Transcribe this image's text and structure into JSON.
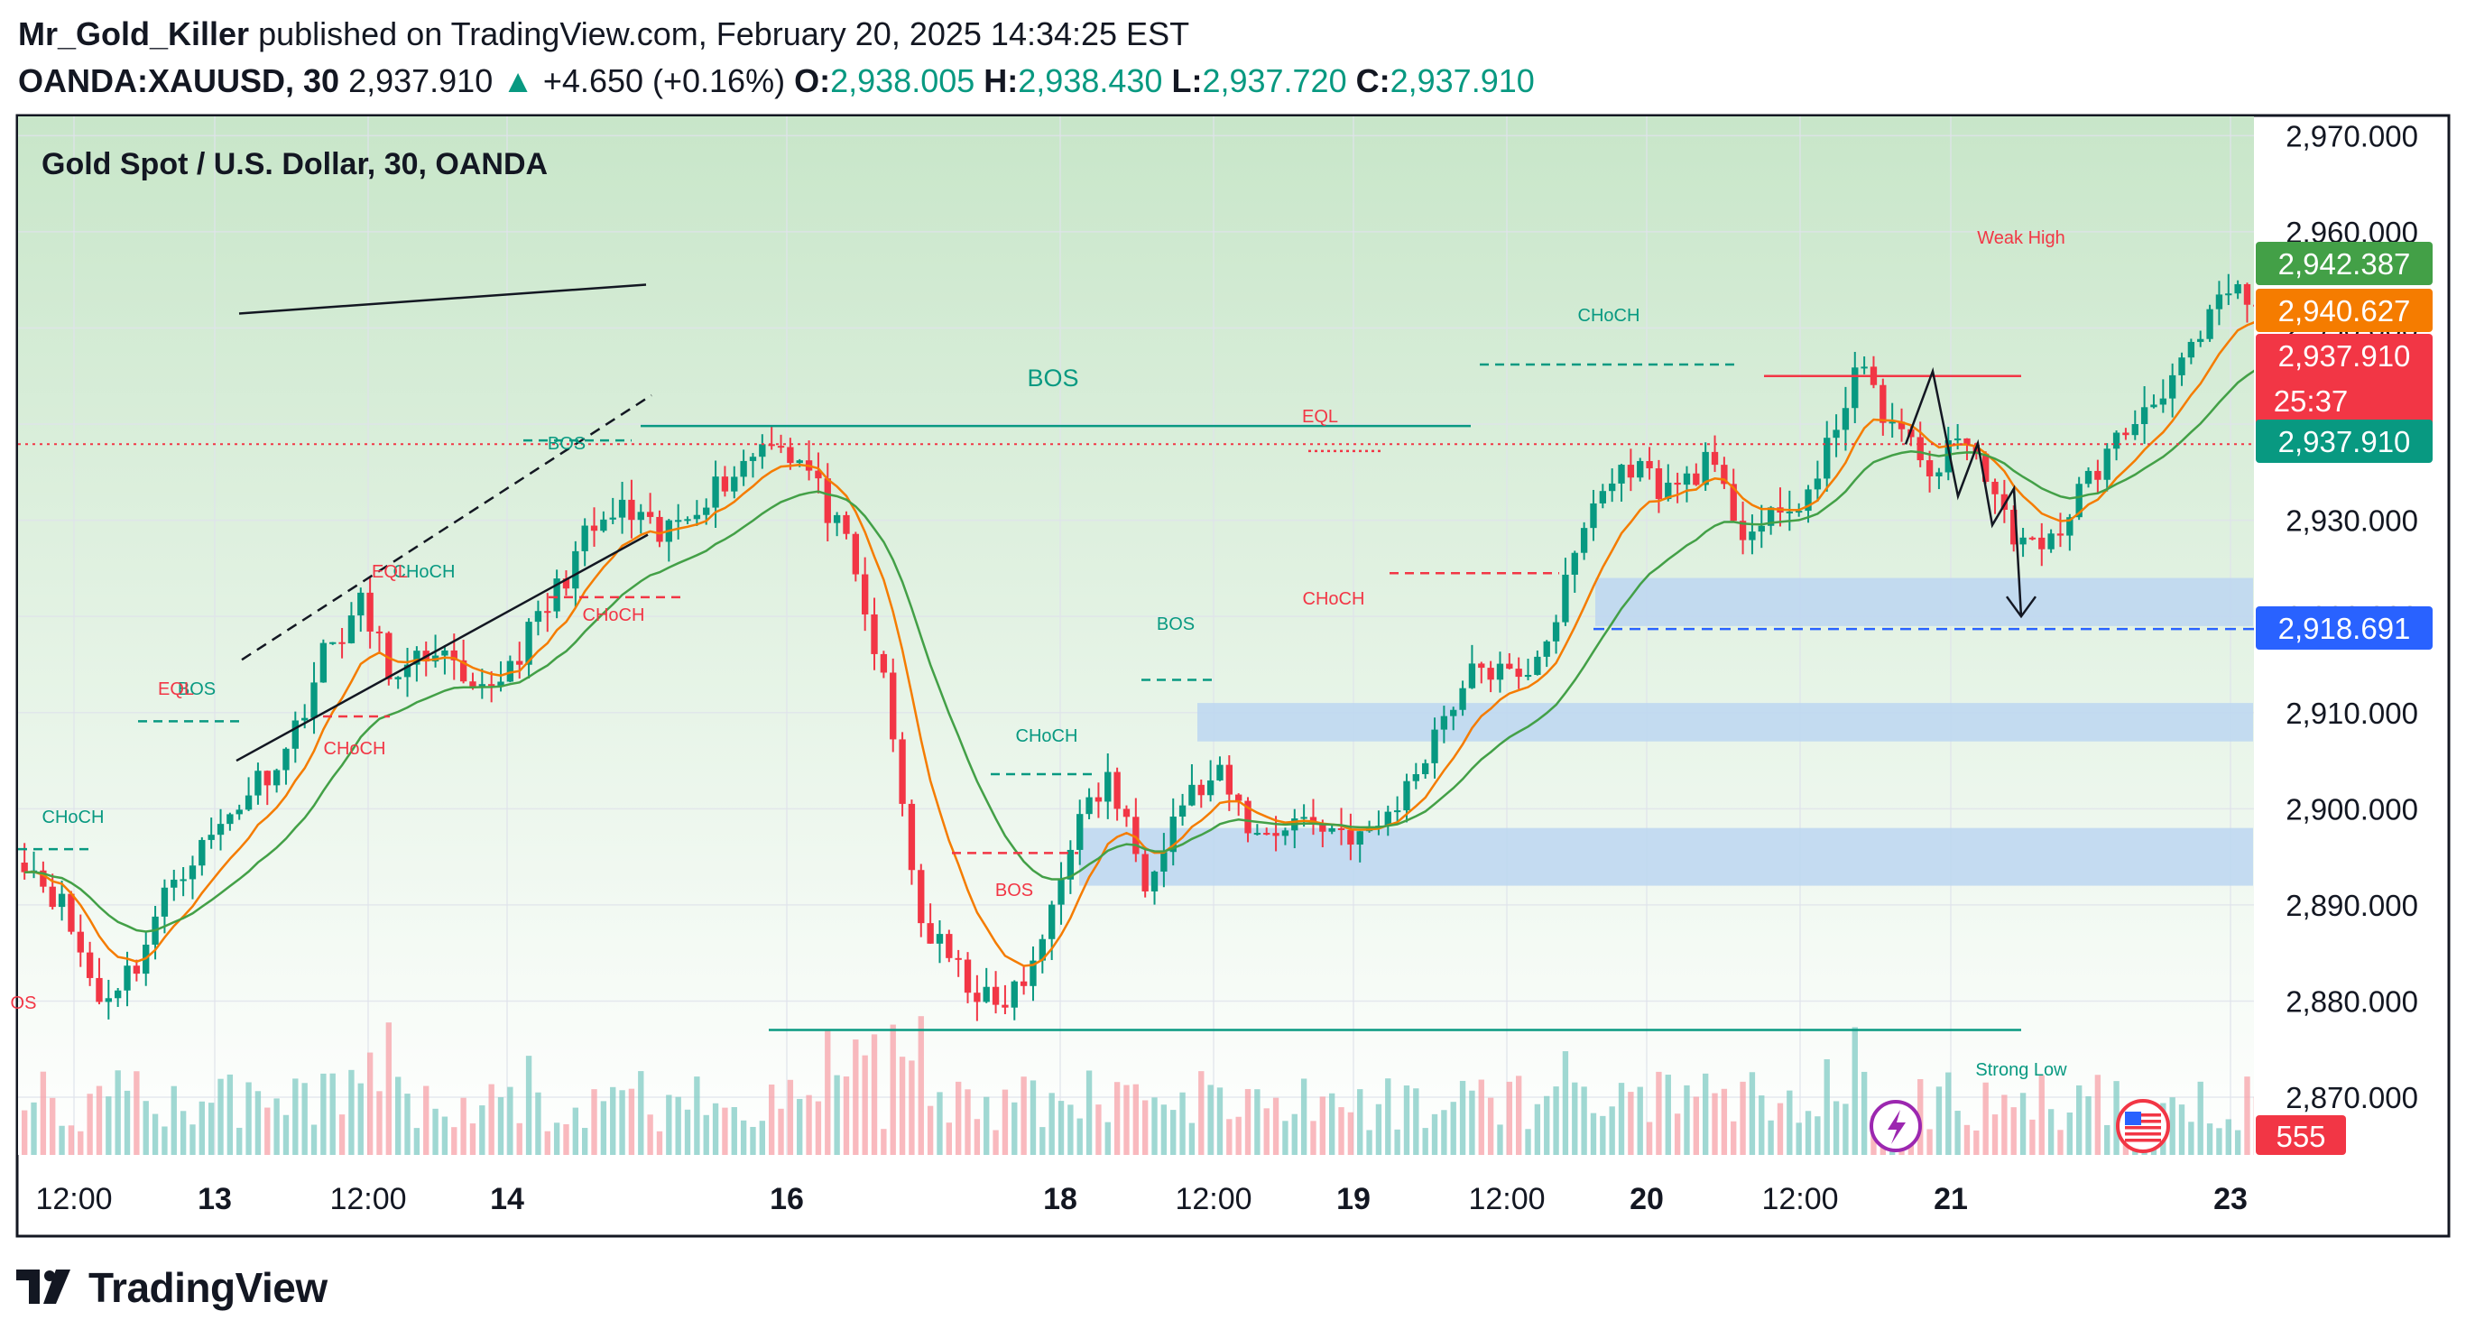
{
  "header": {
    "author": "Mr_Gold_Killer",
    "published_on": "published on TradingView.com, February 20, 2025 14:34:25 EST",
    "symbol": "OANDA:XAUUSD, 30",
    "last": "2,937.910",
    "arrow": "▲",
    "change": "+4.650 (+0.16%)",
    "o_label": "O:",
    "o_value": "2,938.005",
    "h_label": "H:",
    "h_value": "2,938.430",
    "l_label": "L:",
    "l_value": "2,937.720",
    "c_label": "C:",
    "c_value": "2,937.910"
  },
  "footer": {
    "brand": "TradingView"
  },
  "colors": {
    "up": "#089981",
    "down": "#f23645",
    "ema_fast": "#f57c00",
    "ema_slow": "#43a047",
    "zone": "#bcd6f1",
    "bg_top": "#c8e6c9"
  },
  "chart_data": {
    "type": "candlestick",
    "title": "Gold Spot / U.S. Dollar, 30, OANDA",
    "ylim": [
      2864,
      2972
    ],
    "y_ticks": [
      2870,
      2880,
      2890,
      2900,
      2910,
      2920,
      2930,
      2940,
      2950,
      2960,
      2970
    ],
    "y_tick_labels": [
      "2,870.000",
      "2,880.000",
      "2,890.000",
      "2,900.000",
      "2,910.000",
      "2,920.000",
      "2,930.000",
      "2,940.000",
      "2,950.000",
      "2,960.000",
      "2,970.000"
    ],
    "x_tick_labels": [
      "12:00",
      "13",
      "12:00",
      "14",
      "16",
      "18",
      "12:00",
      "19",
      "12:00",
      "20",
      "12:00",
      "21",
      "23"
    ],
    "series_path": [
      [
        0,
        2895
      ],
      [
        4,
        2890
      ],
      [
        8,
        2880
      ],
      [
        12,
        2884
      ],
      [
        16,
        2893
      ],
      [
        20,
        2897
      ],
      [
        24,
        2902
      ],
      [
        28,
        2906
      ],
      [
        32,
        2916
      ],
      [
        36,
        2921
      ],
      [
        40,
        2913
      ],
      [
        44,
        2917
      ],
      [
        48,
        2911
      ],
      [
        52,
        2915
      ],
      [
        56,
        2921
      ],
      [
        60,
        2928
      ],
      [
        64,
        2931
      ],
      [
        68,
        2928
      ],
      [
        72,
        2932
      ],
      [
        76,
        2935
      ],
      [
        80,
        2939
      ],
      [
        84,
        2935
      ],
      [
        88,
        2927
      ],
      [
        92,
        2913
      ],
      [
        96,
        2888
      ],
      [
        100,
        2883
      ],
      [
        104,
        2879
      ],
      [
        108,
        2883
      ],
      [
        112,
        2897
      ],
      [
        116,
        2903
      ],
      [
        120,
        2893
      ],
      [
        124,
        2901
      ],
      [
        128,
        2903
      ],
      [
        132,
        2897
      ],
      [
        136,
        2899
      ],
      [
        140,
        2898
      ],
      [
        144,
        2897
      ],
      [
        148,
        2902
      ],
      [
        152,
        2910
      ],
      [
        156,
        2915
      ],
      [
        160,
        2913
      ],
      [
        164,
        2920
      ],
      [
        168,
        2932
      ],
      [
        172,
        2936
      ],
      [
        176,
        2933
      ],
      [
        180,
        2936
      ],
      [
        184,
        2929
      ],
      [
        188,
        2930
      ],
      [
        192,
        2934
      ],
      [
        196,
        2946
      ],
      [
        200,
        2940
      ],
      [
        204,
        2935
      ],
      [
        208,
        2939
      ],
      [
        212,
        2930
      ],
      [
        216,
        2926
      ],
      [
        220,
        2933
      ],
      [
        224,
        2938
      ],
      [
        228,
        2943
      ],
      [
        232,
        2947
      ],
      [
        236,
        2954
      ],
      [
        240,
        2951
      ],
      [
        244,
        2944
      ],
      [
        248,
        2942
      ],
      [
        252,
        2928
      ],
      [
        256,
        2933
      ],
      [
        260,
        2940
      ],
      [
        264,
        2938
      ]
    ],
    "series": [
      {
        "name": "EMA fast",
        "color": "#f57c00"
      },
      {
        "name": "EMA slow",
        "color": "#43a047"
      }
    ],
    "price_labels": [
      {
        "value": 2942.387,
        "text": "2,942.387",
        "color": "#43a047"
      },
      {
        "value": 2940.627,
        "text": "2,940.627",
        "color": "#f57c00"
      },
      {
        "value": 2937.91,
        "text": "2,937.910",
        "countdown": "25:37",
        "color": "#f23645"
      },
      {
        "value": 2937.91,
        "text": "2,937.910",
        "color": "#089981"
      },
      {
        "value": 2918.691,
        "text": "2,918.691",
        "color": "#2962ff"
      }
    ],
    "volume_label": "555",
    "zones": [
      {
        "y1": 2924,
        "y2": 2919
      },
      {
        "y1": 2911,
        "y2": 2907
      },
      {
        "y1": 2898,
        "y2": 2892
      }
    ],
    "annotations": [
      {
        "text": "BOS",
        "color": "#089981"
      },
      {
        "text": "BOS",
        "color": "#089981"
      },
      {
        "text": "BOS",
        "color": "#089981"
      },
      {
        "text": "BOS",
        "color": "#089981"
      },
      {
        "text": "BOS",
        "color": "#f23645"
      },
      {
        "text": "OS",
        "color": "#f23645"
      },
      {
        "text": "CHoCH",
        "color": "#089981"
      },
      {
        "text": "CHoCH",
        "color": "#089981"
      },
      {
        "text": "CHoCH",
        "color": "#089981"
      },
      {
        "text": "CHoCH",
        "color": "#089981"
      },
      {
        "text": "CHoCH",
        "color": "#f23645"
      },
      {
        "text": "CHoCH",
        "color": "#f23645"
      },
      {
        "text": "CHoCH",
        "color": "#f23645"
      },
      {
        "text": "EQL",
        "color": "#f23645"
      },
      {
        "text": "EQL",
        "color": "#f23645"
      },
      {
        "text": "EQL",
        "color": "#f23645"
      },
      {
        "text": "Weak High",
        "color": "#f23645"
      },
      {
        "text": "Strong Low",
        "color": "#089981"
      }
    ]
  }
}
